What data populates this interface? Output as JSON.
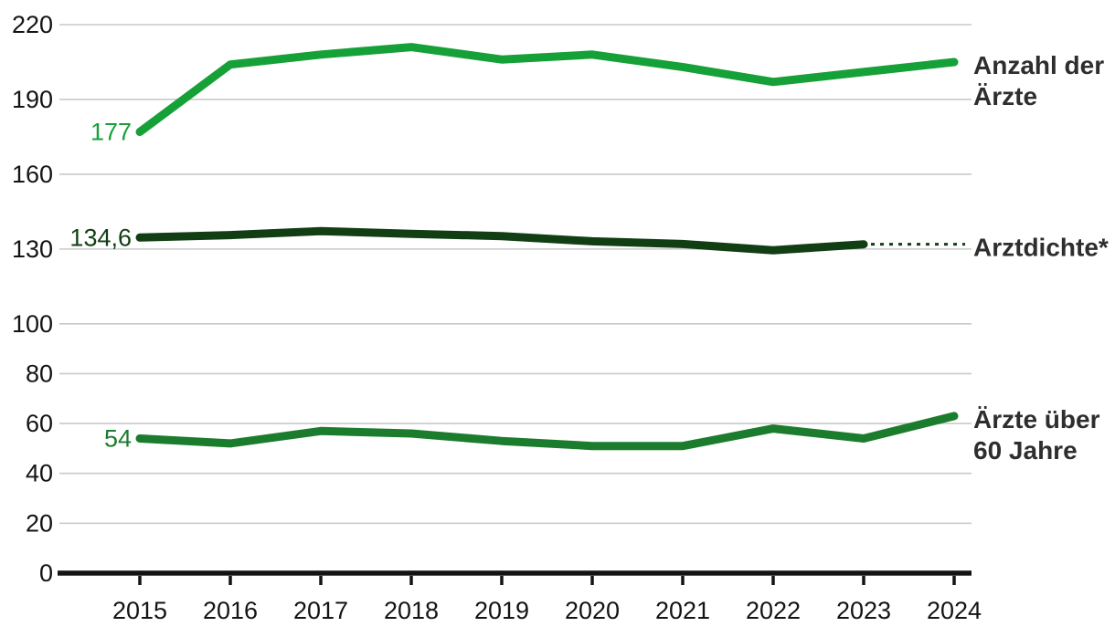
{
  "chart": {
    "background_color": "#ffffff",
    "grid_color": "#c9c9c9",
    "axis_color": "#141414",
    "tick_label_color": "#141414",
    "series_label_color": "#2e2e2e"
  },
  "chart_data": {
    "type": "line",
    "title": "",
    "xlabel": "",
    "ylabel": "",
    "x": [
      2015,
      2016,
      2017,
      2018,
      2019,
      2020,
      2021,
      2022,
      2023,
      2024
    ],
    "yticks": [
      0,
      20,
      40,
      60,
      80,
      100,
      130,
      160,
      190,
      220
    ],
    "ylim": [
      0,
      225
    ],
    "grid": true,
    "legend_position": "right-edge-labels",
    "series": [
      {
        "name": "Anzahl der Ärzte",
        "label_lines": [
          "Anzahl der",
          "Ärzte"
        ],
        "color": "#16a038",
        "values": [
          177,
          204,
          208,
          211,
          206,
          208,
          203,
          197,
          201,
          205
        ],
        "start_label": "177",
        "dotted_extension_to_label": false
      },
      {
        "name": "Arztdichte*",
        "label_lines": [
          "Arztdichte*"
        ],
        "color": "#113f13",
        "values": [
          134.6,
          135.6,
          137.2,
          136.1,
          135.2,
          133.1,
          132,
          129.5,
          131.9,
          null
        ],
        "start_label": "134,6",
        "dotted_extension_to_label": true
      },
      {
        "name": "Ärzte über 60 Jahre",
        "label_lines": [
          "Ärzte über",
          "60 Jahre"
        ],
        "color": "#1c7c2e",
        "values": [
          54,
          52,
          57,
          56,
          53,
          51,
          51,
          58,
          54,
          63
        ],
        "start_label": "54",
        "dotted_extension_to_label": false
      }
    ]
  }
}
